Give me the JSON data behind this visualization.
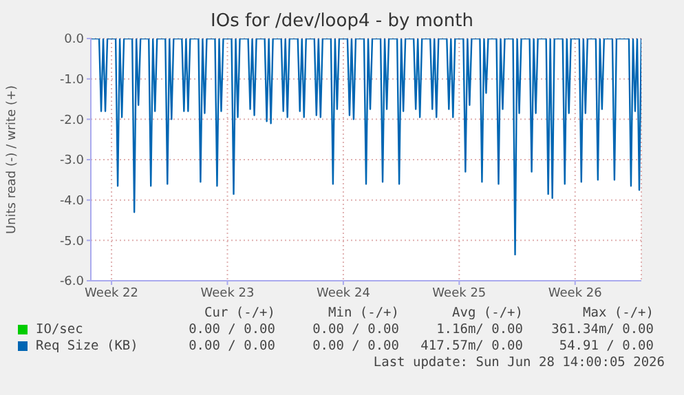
{
  "chart_data": {
    "type": "line",
    "title": "IOs for /dev/loop4 - by month",
    "ylabel": "Units read (-) / write (+)",
    "categories": [
      null,
      null,
      null,
      null,
      null,
      null,
      null,
      null,
      null,
      null,
      "Week 22",
      null,
      null,
      null,
      null,
      null,
      null,
      null,
      null,
      null,
      null,
      null,
      null,
      null,
      null,
      null,
      null,
      null,
      null,
      null,
      null,
      null,
      null,
      null,
      null,
      null,
      null,
      null,
      null,
      null,
      null,
      null,
      null,
      null,
      null,
      null,
      null,
      null,
      null,
      null,
      null,
      null,
      null,
      null,
      null,
      null,
      null,
      null,
      null,
      null,
      null,
      null,
      null,
      null,
      null,
      null,
      "Week 23",
      null,
      null,
      null,
      null,
      null,
      null,
      null,
      null,
      null,
      null,
      null,
      null,
      null,
      null,
      null,
      null,
      null,
      null,
      null,
      null,
      null,
      null,
      null,
      null,
      null,
      null,
      null,
      null,
      null,
      null,
      null,
      null,
      null,
      null,
      null,
      null,
      null,
      null,
      null,
      null,
      null,
      null,
      null,
      null,
      null,
      null,
      null,
      null,
      null,
      null,
      null,
      null,
      null,
      null,
      null,
      "Week 24",
      null,
      null,
      null,
      null,
      null,
      null,
      null,
      null,
      null,
      null,
      null,
      null,
      null,
      null,
      null,
      null,
      null,
      null,
      null,
      null,
      null,
      null,
      null,
      null,
      null,
      null,
      null,
      null,
      null,
      null,
      null,
      null,
      null,
      null,
      null,
      null,
      null,
      null,
      null,
      null,
      null,
      null,
      null,
      null,
      null,
      null,
      null,
      null,
      null,
      null,
      null,
      null,
      null,
      null,
      null,
      "Week 25",
      null,
      null,
      null,
      null,
      null,
      null,
      null,
      null,
      null,
      null,
      null,
      null,
      null,
      null,
      null,
      null,
      null,
      null,
      null,
      null,
      null,
      null,
      null,
      null,
      null,
      null,
      null,
      null,
      null,
      null,
      null,
      null,
      null,
      null,
      null,
      null,
      null,
      null,
      null,
      null,
      null,
      null,
      null,
      null,
      null,
      null,
      null,
      null,
      null,
      null,
      null,
      null,
      null,
      null,
      null,
      "Week 26",
      null,
      null,
      null,
      null,
      null,
      null,
      null,
      null,
      null,
      null,
      null,
      null,
      null,
      null,
      null,
      null,
      null,
      null,
      null,
      null,
      null,
      null,
      null,
      null,
      null,
      null,
      null,
      null,
      null,
      null,
      null,
      null
    ],
    "ylim": [
      -6,
      0
    ],
    "yticks": [
      {
        "value": 0,
        "label": "0.0"
      },
      {
        "value": -1,
        "label": "-1.0"
      },
      {
        "value": -2,
        "label": "-2.0"
      },
      {
        "value": -3,
        "label": "-3.0"
      },
      {
        "value": -4,
        "label": "-4.0"
      },
      {
        "value": -5,
        "label": "-5.0"
      },
      {
        "value": -6,
        "label": "-6.0"
      }
    ],
    "grid": true,
    "legend": "bottom",
    "series": [
      {
        "name": "IO/sec",
        "color": "#00cc00",
        "values": [
          null,
          null,
          null,
          null,
          null,
          null,
          null,
          null,
          null,
          null,
          null,
          null,
          null,
          null,
          null,
          null,
          null,
          null,
          null,
          null,
          null,
          null,
          null,
          null,
          null,
          null,
          null,
          null,
          null,
          null,
          null,
          null,
          null,
          null,
          null,
          null,
          null,
          null,
          null,
          null,
          null,
          null,
          null,
          null,
          null,
          null,
          null,
          null,
          null,
          null,
          null,
          null,
          null,
          null,
          null,
          null,
          null,
          null,
          null,
          null,
          null,
          null,
          null,
          null,
          null,
          null,
          null,
          null,
          null,
          null,
          null,
          null,
          null,
          null,
          null,
          null,
          null,
          null,
          null,
          null,
          null,
          null,
          null,
          null,
          null,
          null,
          null,
          null,
          null,
          null,
          null,
          null,
          null,
          null,
          null,
          null,
          null,
          null,
          null,
          null,
          null,
          null,
          null,
          null,
          null,
          null,
          null,
          null,
          null,
          null,
          null,
          null,
          null,
          null,
          null,
          null,
          null,
          null,
          null,
          null,
          null,
          null,
          null,
          null,
          null,
          null,
          null,
          null,
          null,
          null,
          null,
          null,
          null,
          null,
          null,
          null,
          null,
          null,
          null,
          null,
          null,
          null,
          null,
          null,
          null,
          null,
          null,
          null,
          null,
          null,
          null,
          null,
          null,
          null,
          null,
          null,
          null,
          null,
          null,
          null,
          null,
          null,
          null,
          null,
          null,
          null,
          null,
          null,
          null,
          null,
          null,
          null,
          null,
          null,
          null,
          null,
          null,
          null,
          null,
          null,
          null,
          null,
          null,
          null,
          null,
          null,
          null,
          null,
          null,
          null,
          null,
          null,
          null,
          null,
          null,
          null,
          null,
          null,
          null,
          null,
          null,
          null,
          null,
          null,
          null,
          null,
          null,
          null,
          null,
          null,
          null,
          null,
          null,
          null,
          null,
          null,
          null,
          null,
          null,
          null,
          null,
          null,
          null,
          null,
          null,
          null,
          null,
          null,
          null,
          null,
          null,
          null,
          null,
          null,
          null,
          null,
          null,
          null,
          null,
          null,
          null,
          null,
          null,
          null,
          null,
          null,
          null,
          null,
          null,
          null,
          null,
          null,
          null,
          null,
          null,
          null,
          null,
          null,
          null,
          null,
          null,
          null,
          null,
          null,
          null,
          null,
          null
        ]
      },
      {
        "name": "Req Size (KB)",
        "color": "#0066b3",
        "values": [
          0,
          0,
          0,
          0,
          0,
          -1.8,
          0,
          -1.8,
          0,
          0,
          0,
          0,
          0,
          -3.65,
          0,
          -1.95,
          0,
          0,
          0,
          0,
          0,
          -4.3,
          0,
          -1.65,
          0,
          0,
          0,
          0,
          0,
          -3.65,
          0,
          -1.8,
          0,
          0,
          0,
          0,
          0,
          -3.6,
          0,
          -2.0,
          0,
          0,
          0,
          0,
          0,
          -1.8,
          0,
          -1.8,
          0,
          0,
          0,
          0,
          0,
          -3.55,
          0,
          -1.85,
          0,
          0,
          0,
          0,
          0,
          -3.65,
          0,
          -1.8,
          0,
          0,
          0,
          0,
          0,
          -3.85,
          0,
          -1.95,
          0,
          0,
          0,
          0,
          0,
          -1.75,
          0,
          -1.9,
          0,
          0,
          0,
          0,
          0,
          -2.05,
          0,
          -2.1,
          0,
          0,
          0,
          0,
          0,
          -1.8,
          0,
          -1.95,
          0,
          0,
          0,
          0,
          0,
          -1.8,
          0,
          -1.95,
          0,
          0,
          0,
          0,
          0,
          -1.9,
          0,
          -1.95,
          0,
          0,
          0,
          0,
          0,
          -3.6,
          0,
          -1.75,
          0,
          0,
          0,
          0,
          0,
          -1.9,
          0,
          -2.0,
          0,
          0,
          0,
          0,
          0,
          -3.6,
          0,
          -1.75,
          0,
          0,
          0,
          0,
          0,
          -3.55,
          0,
          -1.75,
          0,
          0,
          0,
          0,
          0,
          -3.6,
          0,
          -1.8,
          0,
          0,
          0,
          0,
          0,
          -1.75,
          0,
          -1.95,
          0,
          0,
          0,
          0,
          0,
          -1.75,
          0,
          -1.95,
          0,
          0,
          0,
          0,
          0,
          -1.75,
          0,
          -1.95,
          0,
          0,
          0,
          0,
          0,
          -3.3,
          0,
          -1.65,
          0,
          0,
          0,
          0,
          0,
          -3.55,
          0,
          -1.35,
          0,
          0,
          0,
          0,
          0,
          -3.6,
          0,
          -1.75,
          0,
          0,
          0,
          0,
          0,
          -5.35,
          0,
          -1.85,
          0,
          0,
          0,
          0,
          0,
          -3.3,
          0,
          -1.85,
          0,
          0,
          0,
          0,
          0,
          -3.85,
          0,
          -3.95,
          0,
          0,
          0,
          0,
          0,
          -3.6,
          0,
          -1.85,
          0,
          0,
          0,
          0,
          0,
          -3.55,
          0,
          -1.85,
          0,
          0,
          0,
          0,
          0,
          -3.5,
          0,
          -1.75,
          0,
          0,
          0,
          0,
          0,
          -3.5,
          0,
          0,
          0,
          0,
          0,
          0,
          0,
          -3.65,
          0,
          -1.8,
          0,
          -3.75,
          0
        ]
      }
    ],
    "annotations": [
      "Cur (-/+)",
      "Min (-/+)",
      "Avg (-/+)",
      "Max (-/+)",
      "0.00 / 0.00",
      "0.00 / 0.00",
      "1.16m/ 0.00",
      "361.34m/ 0.00",
      "0.00 / 0.00",
      "0.00 / 0.00",
      "417.57m/ 0.00",
      "54.91 / 0.00",
      "Last update: Sun Jun 28 14:00:05 2026"
    ]
  }
}
